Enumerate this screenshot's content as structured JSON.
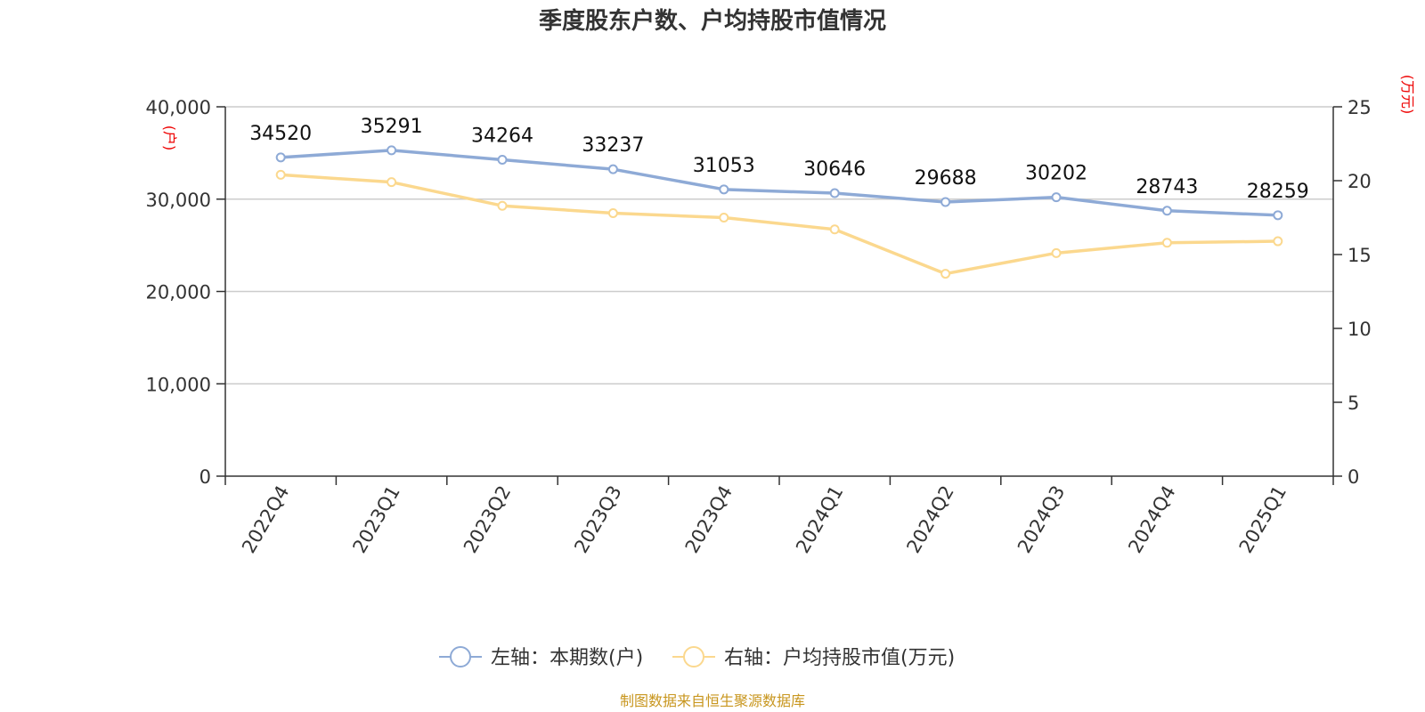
{
  "chart_data": {
    "type": "line",
    "title": "季度股东户数、户均持股市值情况",
    "categories": [
      "2022Q4",
      "2023Q1",
      "2023Q2",
      "2023Q3",
      "2023Q4",
      "2024Q1",
      "2024Q2",
      "2024Q3",
      "2024Q4",
      "2025Q1"
    ],
    "y_left": {
      "unit": "(户)",
      "range": [
        0,
        40000
      ],
      "ticks": [
        "0",
        "10,000",
        "20,000",
        "30,000",
        "40,000"
      ]
    },
    "y_right": {
      "unit": "(万元)",
      "range": [
        0,
        25
      ],
      "ticks": [
        "0",
        "5",
        "10",
        "15",
        "20",
        "25"
      ]
    },
    "grid": true,
    "legend_position": "bottom",
    "series": [
      {
        "name": "左轴：本期数(户)",
        "axis": "left",
        "color": "#8eaad6",
        "values": [
          34520,
          35291,
          34264,
          33237,
          31053,
          30646,
          29688,
          30202,
          28743,
          28259
        ],
        "labels": [
          "34520",
          "35291",
          "34264",
          "33237",
          "31053",
          "30646",
          "29688",
          "30202",
          "28743",
          "28259"
        ]
      },
      {
        "name": "右轴：户均持股市值(万元)",
        "axis": "right",
        "color": "#fbd88e",
        "values": [
          20.4,
          19.9,
          18.3,
          17.8,
          17.5,
          16.7,
          13.7,
          15.1,
          15.8,
          15.9
        ]
      }
    ]
  },
  "source": "制图数据来自恒生聚源数据库"
}
